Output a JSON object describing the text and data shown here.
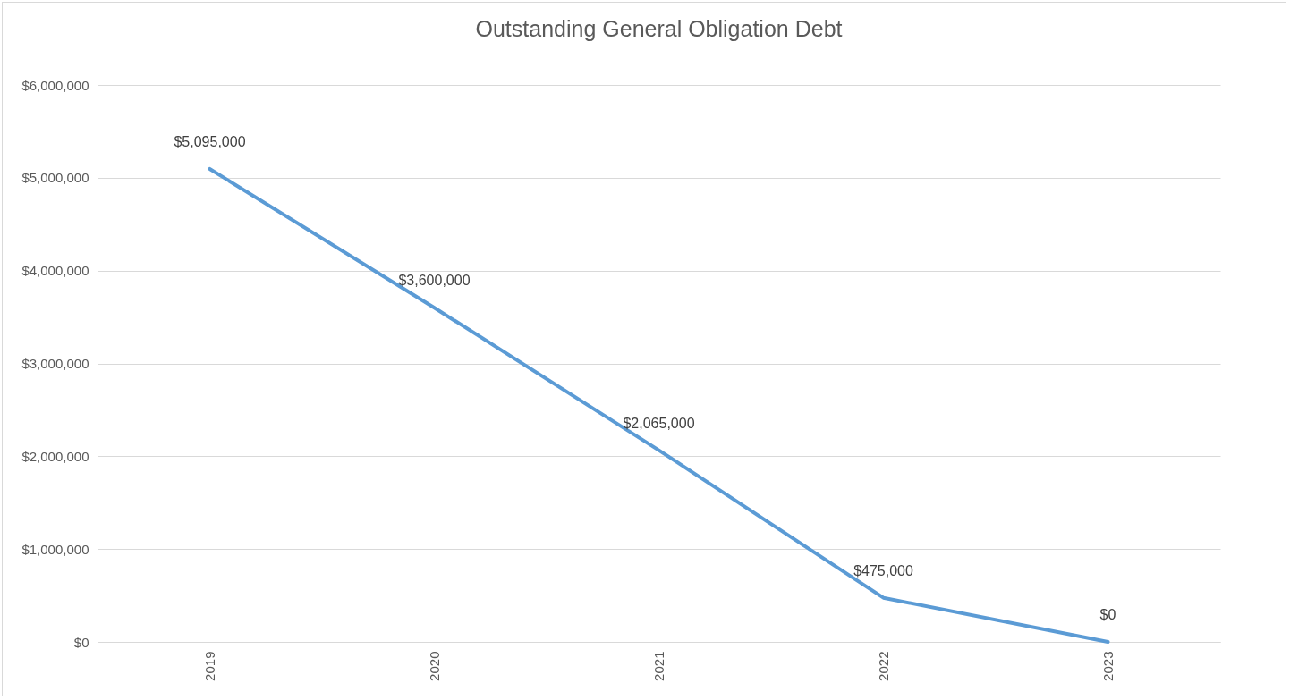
{
  "chart_data": {
    "type": "line",
    "title": "Outstanding General Obligation Debt",
    "categories": [
      "2019",
      "2020",
      "2021",
      "2022",
      "2023"
    ],
    "series": [
      {
        "color": "#5b9bd5",
        "values": [
          5095000,
          3600000,
          2065000,
          475000,
          0
        ],
        "value_labels": [
          "$5,095,000",
          "$3,600,000",
          "$2,065,000",
          "$475,000",
          "$0"
        ]
      }
    ],
    "ylim": [
      0,
      6000000
    ],
    "yticks": [
      {
        "value": 0,
        "label": "$0"
      },
      {
        "value": 1000000,
        "label": "$1,000,000"
      },
      {
        "value": 2000000,
        "label": "$2,000,000"
      },
      {
        "value": 3000000,
        "label": "$3,000,000"
      },
      {
        "value": 4000000,
        "label": "$4,000,000"
      },
      {
        "value": 5000000,
        "label": "$5,000,000"
      },
      {
        "value": 6000000,
        "label": "$6,000,000"
      }
    ],
    "grid": "y",
    "legend": false,
    "marker": "none",
    "line_style": "solid"
  }
}
